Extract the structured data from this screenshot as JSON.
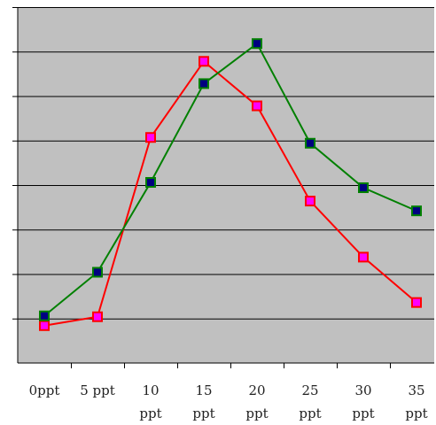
{
  "chart_data": {
    "type": "line",
    "title": "",
    "xlabel": "",
    "ylabel": "",
    "categories": [
      "0ppt",
      "5 ppt",
      "10 ppt",
      "15 ppt",
      "20 ppt",
      "25 ppt",
      "30 ppt",
      "35 ppt"
    ],
    "category_lines": [
      [
        "0ppt"
      ],
      [
        "5 ppt"
      ],
      [
        "10",
        "ppt"
      ],
      [
        "15",
        "ppt"
      ],
      [
        "20",
        "ppt"
      ],
      [
        "25",
        "ppt"
      ],
      [
        "30",
        "ppt"
      ],
      [
        "35",
        "ppt"
      ]
    ],
    "ylim": [
      0,
      8
    ],
    "y_tick_labels_shown": false,
    "grid": true,
    "plot_background": "#c0c0c0",
    "legend": "none",
    "series": [
      {
        "values": [
          0.84,
          1.04,
          5.07,
          6.78,
          5.78,
          3.64,
          2.38,
          1.36
        ],
        "line_color": "#ff0000",
        "marker_fill": "#ff00ff",
        "marker_edge": "#ff0000",
        "marker": "square"
      },
      {
        "values": [
          1.06,
          2.04,
          4.06,
          6.28,
          7.18,
          4.94,
          3.94,
          3.42
        ],
        "line_color": "#008000",
        "marker_fill": "#000080",
        "marker_edge": "#008000",
        "marker": "square"
      }
    ]
  }
}
